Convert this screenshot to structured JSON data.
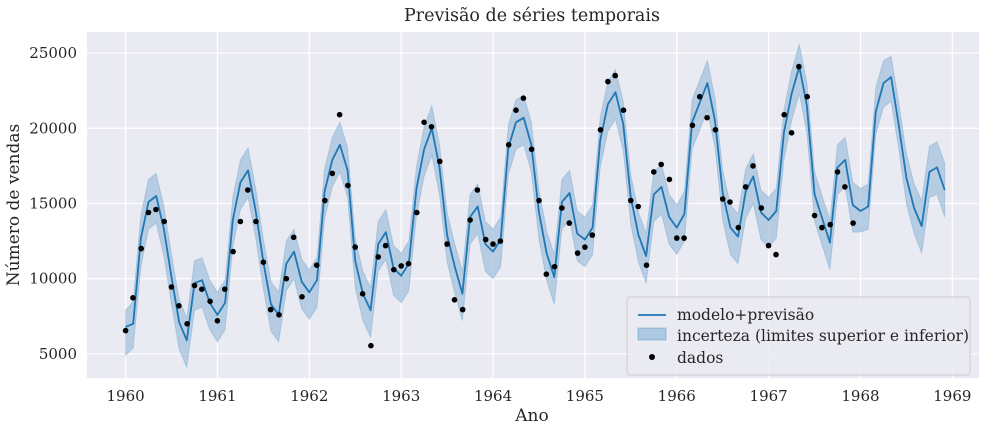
{
  "chart_data": {
    "type": "line",
    "title": "Previsão de séries temporais",
    "xlabel": "Ano",
    "ylabel": "Número de vendas",
    "xlim": [
      1959.58,
      1969.29
    ],
    "ylim": [
      3400,
      26400
    ],
    "xticks": [
      1960,
      1961,
      1962,
      1963,
      1964,
      1965,
      1966,
      1967,
      1968,
      1969
    ],
    "yticks": [
      5000,
      10000,
      15000,
      20000,
      25000
    ],
    "grid": true,
    "legend_position": "bottom-right",
    "legend": [
      "modelo+previsão",
      "incerteza (limites superior e inferior)",
      "dados"
    ],
    "colors": {
      "model": "#1f77b4",
      "band": "#9ebfdc",
      "data": "#000000",
      "plot_bg": "#eaeaf2",
      "grid": "#ffffff"
    },
    "series": [
      {
        "name": "modelo+previsão",
        "start_year": 1960,
        "step": 0.0833333,
        "values": [
          6800,
          7000,
          12700,
          15100,
          15500,
          13300,
          10100,
          7100,
          5900,
          9700,
          9900,
          8400,
          7600,
          8400,
          13900,
          16400,
          17200,
          14500,
          11100,
          8300,
          7600,
          11000,
          11800,
          9800,
          9100,
          9900,
          15800,
          17900,
          18900,
          17200,
          11200,
          9000,
          7900,
          12300,
          13100,
          10700,
          10200,
          11000,
          16000,
          18600,
          20000,
          17400,
          12900,
          10800,
          9000,
          14100,
          14800,
          12300,
          11800,
          12600,
          18700,
          20400,
          20700,
          18900,
          14400,
          11700,
          10100,
          15100,
          15700,
          13000,
          12600,
          13400,
          19200,
          21600,
          22400,
          20300,
          15400,
          12900,
          11500,
          15600,
          16100,
          14100,
          13400,
          14300,
          20400,
          21700,
          23000,
          20500,
          15700,
          13400,
          12800,
          15800,
          16800,
          14400,
          13900,
          14500,
          19700,
          22300,
          24100,
          21500,
          15600,
          14000,
          12400,
          17400,
          17900,
          14900,
          14500,
          14800,
          21100,
          23000,
          23400,
          20200,
          16700,
          14700,
          13500,
          17100,
          17400,
          15900
        ],
        "band_lower": [
          4900,
          5400,
          10800,
          13300,
          13700,
          11500,
          8300,
          5300,
          4100,
          7900,
          8100,
          6600,
          5800,
          6600,
          12100,
          14600,
          15400,
          12700,
          9300,
          6500,
          5800,
          9200,
          10000,
          8000,
          7300,
          8100,
          14000,
          16100,
          17100,
          15400,
          9400,
          7200,
          6100,
          10500,
          11300,
          8900,
          8400,
          9200,
          14200,
          16800,
          18200,
          15600,
          11100,
          9000,
          7200,
          12300,
          13000,
          10500,
          10000,
          10800,
          16900,
          18600,
          18900,
          17100,
          12600,
          9900,
          8300,
          13300,
          13900,
          11200,
          10800,
          11600,
          17400,
          19800,
          20600,
          18500,
          13600,
          11100,
          9700,
          13800,
          14300,
          12300,
          11600,
          12500,
          18600,
          19900,
          21200,
          18700,
          13900,
          11600,
          11000,
          14000,
          15000,
          12600,
          12100,
          12700,
          17900,
          20500,
          22300,
          19700,
          13800,
          12200,
          10600,
          15600,
          16100,
          13100,
          13100,
          13300,
          19600,
          21400,
          21800,
          18600,
          15000,
          13000,
          11700,
          15400,
          15600,
          14100
        ],
        "band_upper": [
          7900,
          8500,
          14200,
          16600,
          17000,
          14800,
          11600,
          8600,
          7400,
          11200,
          11400,
          9900,
          9100,
          9900,
          15400,
          17900,
          18700,
          16000,
          12600,
          9800,
          9100,
          12500,
          13300,
          11300,
          10600,
          11400,
          17300,
          19400,
          20400,
          18700,
          12700,
          10500,
          9400,
          13800,
          14600,
          12200,
          11700,
          12500,
          17500,
          20100,
          21500,
          18900,
          14400,
          12300,
          10500,
          15600,
          16300,
          13800,
          13300,
          14100,
          20200,
          21900,
          22200,
          20400,
          15900,
          13200,
          11600,
          16600,
          17200,
          14500,
          14100,
          14900,
          20700,
          23100,
          23900,
          21800,
          16900,
          14400,
          13000,
          17100,
          17600,
          15600,
          14900,
          15800,
          21900,
          23200,
          24500,
          22000,
          17200,
          14900,
          14300,
          17300,
          18300,
          15900,
          15400,
          16000,
          21200,
          23800,
          25600,
          23000,
          17100,
          15500,
          13900,
          18900,
          19400,
          16400,
          16000,
          16300,
          22700,
          24500,
          24800,
          21700,
          18300,
          16300,
          15200,
          18800,
          19100,
          17700
        ]
      },
      {
        "name": "dados",
        "points": [
          [
            1960.0,
            6550
          ],
          [
            1960.08,
            8730
          ],
          [
            1960.17,
            12000
          ],
          [
            1960.25,
            14400
          ],
          [
            1960.33,
            14600
          ],
          [
            1960.42,
            13800
          ],
          [
            1960.5,
            9450
          ],
          [
            1960.58,
            8200
          ],
          [
            1960.67,
            7000
          ],
          [
            1960.75,
            9550
          ],
          [
            1960.83,
            9300
          ],
          [
            1960.92,
            8500
          ],
          [
            1961.0,
            7200
          ],
          [
            1961.08,
            9300
          ],
          [
            1961.17,
            11800
          ],
          [
            1961.25,
            13800
          ],
          [
            1961.33,
            15900
          ],
          [
            1961.42,
            13800
          ],
          [
            1961.5,
            11100
          ],
          [
            1961.58,
            7950
          ],
          [
            1961.67,
            7600
          ],
          [
            1961.75,
            10000
          ],
          [
            1961.83,
            12750
          ],
          [
            1961.92,
            8800
          ],
          [
            1962.08,
            10900
          ],
          [
            1962.17,
            15200
          ],
          [
            1962.25,
            17000
          ],
          [
            1962.33,
            20900
          ],
          [
            1962.42,
            16200
          ],
          [
            1962.5,
            12100
          ],
          [
            1962.58,
            9000
          ],
          [
            1962.67,
            5550
          ],
          [
            1962.75,
            11450
          ],
          [
            1962.83,
            12200
          ],
          [
            1962.92,
            10600
          ],
          [
            1963.0,
            10850
          ],
          [
            1963.08,
            11000
          ],
          [
            1963.17,
            14400
          ],
          [
            1963.25,
            20400
          ],
          [
            1963.33,
            20100
          ],
          [
            1963.42,
            17800
          ],
          [
            1963.5,
            12300
          ],
          [
            1963.58,
            8600
          ],
          [
            1963.67,
            7950
          ],
          [
            1963.75,
            13900
          ],
          [
            1963.83,
            15900
          ],
          [
            1963.92,
            12600
          ],
          [
            1964.0,
            12300
          ],
          [
            1964.08,
            12500
          ],
          [
            1964.17,
            18900
          ],
          [
            1964.25,
            21200
          ],
          [
            1964.33,
            22000
          ],
          [
            1964.42,
            18600
          ],
          [
            1964.5,
            15200
          ],
          [
            1964.58,
            10300
          ],
          [
            1964.67,
            10800
          ],
          [
            1964.75,
            14700
          ],
          [
            1964.83,
            13700
          ],
          [
            1964.92,
            11700
          ],
          [
            1965.0,
            12100
          ],
          [
            1965.08,
            12900
          ],
          [
            1965.17,
            19900
          ],
          [
            1965.25,
            23100
          ],
          [
            1965.33,
            23500
          ],
          [
            1965.42,
            21200
          ],
          [
            1965.5,
            15200
          ],
          [
            1965.58,
            14800
          ],
          [
            1965.67,
            10900
          ],
          [
            1965.75,
            17100
          ],
          [
            1965.83,
            17600
          ],
          [
            1965.92,
            16600
          ],
          [
            1966.0,
            12700
          ],
          [
            1966.08,
            12700
          ],
          [
            1966.17,
            20200
          ],
          [
            1966.25,
            22100
          ],
          [
            1966.33,
            20700
          ],
          [
            1966.42,
            19900
          ],
          [
            1966.5,
            15300
          ],
          [
            1966.58,
            15100
          ],
          [
            1966.67,
            13400
          ],
          [
            1966.75,
            16100
          ],
          [
            1966.83,
            17500
          ],
          [
            1966.92,
            14700
          ],
          [
            1967.0,
            12200
          ],
          [
            1967.08,
            11600
          ],
          [
            1967.17,
            20900
          ],
          [
            1967.25,
            19700
          ],
          [
            1967.33,
            24100
          ],
          [
            1967.42,
            22100
          ],
          [
            1967.5,
            14200
          ],
          [
            1967.58,
            13400
          ],
          [
            1967.67,
            13600
          ],
          [
            1967.75,
            17100
          ],
          [
            1967.83,
            16100
          ],
          [
            1967.92,
            13700
          ]
        ]
      }
    ]
  }
}
